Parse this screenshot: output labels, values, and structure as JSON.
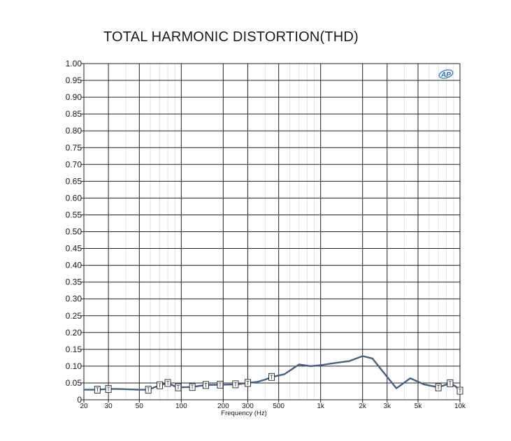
{
  "chart_data": {
    "type": "line",
    "title": "TOTAL HARMONIC DISTORTION(THD)",
    "xlabel": "Frequency (Hz)",
    "ylabel": "",
    "x_scale": "log",
    "xlim": [
      20,
      10000
    ],
    "ylim": [
      0,
      1.0
    ],
    "grid": true,
    "logo_text": "AP",
    "x_ticks": [
      {
        "value": 20,
        "label": "20"
      },
      {
        "value": 30,
        "label": "30"
      },
      {
        "value": 50,
        "label": "50"
      },
      {
        "value": 100,
        "label": "100"
      },
      {
        "value": 200,
        "label": "200"
      },
      {
        "value": 300,
        "label": "300"
      },
      {
        "value": 500,
        "label": "500"
      },
      {
        "value": 1000,
        "label": "1k"
      },
      {
        "value": 2000,
        "label": "2k"
      },
      {
        "value": 3000,
        "label": "3k"
      },
      {
        "value": 5000,
        "label": "5k"
      },
      {
        "value": 10000,
        "label": "10k"
      }
    ],
    "y_ticks": [
      {
        "value": 0,
        "label": "0"
      },
      {
        "value": 0.05,
        "label": "0.05"
      },
      {
        "value": 0.1,
        "label": "0.10"
      },
      {
        "value": 0.15,
        "label": "0.15"
      },
      {
        "value": 0.2,
        "label": "0.20"
      },
      {
        "value": 0.25,
        "label": "0.25"
      },
      {
        "value": 0.3,
        "label": "0.30"
      },
      {
        "value": 0.35,
        "label": "0.35"
      },
      {
        "value": 0.4,
        "label": "0.40"
      },
      {
        "value": 0.45,
        "label": "0.45"
      },
      {
        "value": 0.5,
        "label": "0.50"
      },
      {
        "value": 0.55,
        "label": "0.55"
      },
      {
        "value": 0.6,
        "label": "0.60"
      },
      {
        "value": 0.65,
        "label": "0.65"
      },
      {
        "value": 0.7,
        "label": "0.70"
      },
      {
        "value": 0.75,
        "label": "0.75"
      },
      {
        "value": 0.8,
        "label": "0.80"
      },
      {
        "value": 0.85,
        "label": "0.85"
      },
      {
        "value": 0.9,
        "label": "0.90"
      },
      {
        "value": 0.95,
        "label": "0.95"
      },
      {
        "value": 1.0,
        "label": "1.00"
      }
    ],
    "series": [
      {
        "color": "#4a5f7f",
        "points": [
          [
            20,
            0.03
          ],
          [
            25,
            0.03
          ],
          [
            30,
            0.032
          ],
          [
            35,
            0.032
          ],
          [
            50,
            0.03
          ],
          [
            58,
            0.03
          ],
          [
            70,
            0.043
          ],
          [
            80,
            0.05
          ],
          [
            92,
            0.038
          ],
          [
            100,
            0.037
          ],
          [
            120,
            0.038
          ],
          [
            150,
            0.044
          ],
          [
            200,
            0.045
          ],
          [
            250,
            0.046
          ],
          [
            300,
            0.05
          ],
          [
            350,
            0.053
          ],
          [
            400,
            0.06
          ],
          [
            450,
            0.068
          ],
          [
            550,
            0.076
          ],
          [
            700,
            0.105
          ],
          [
            850,
            0.1
          ],
          [
            1000,
            0.103
          ],
          [
            1300,
            0.11
          ],
          [
            1600,
            0.115
          ],
          [
            2000,
            0.13
          ],
          [
            2350,
            0.123
          ],
          [
            3000,
            0.068
          ],
          [
            3500,
            0.034
          ],
          [
            4400,
            0.064
          ],
          [
            5500,
            0.046
          ],
          [
            7000,
            0.037
          ],
          [
            8500,
            0.049
          ],
          [
            9300,
            0.04
          ],
          [
            10000,
            0.027
          ]
        ],
        "markers": [
          {
            "x": 25,
            "y": 0.03,
            "label": "T"
          },
          {
            "x": 30,
            "y": 0.032,
            "label": "T"
          },
          {
            "x": 58,
            "y": 0.03,
            "label": "T"
          },
          {
            "x": 70,
            "y": 0.043,
            "label": "T"
          },
          {
            "x": 80,
            "y": 0.05,
            "label": "T"
          },
          {
            "x": 95,
            "y": 0.037,
            "label": "T"
          },
          {
            "x": 120,
            "y": 0.038,
            "label": "T"
          },
          {
            "x": 150,
            "y": 0.044,
            "label": "T"
          },
          {
            "x": 190,
            "y": 0.045,
            "label": "T"
          },
          {
            "x": 245,
            "y": 0.046,
            "label": "T"
          },
          {
            "x": 300,
            "y": 0.05,
            "label": "T"
          },
          {
            "x": 445,
            "y": 0.068,
            "label": "T"
          },
          {
            "x": 7000,
            "y": 0.037,
            "label": "T"
          },
          {
            "x": 8500,
            "y": 0.049,
            "label": "T"
          },
          {
            "x": 10000,
            "y": 0.027,
            "label": "T"
          }
        ]
      }
    ]
  }
}
